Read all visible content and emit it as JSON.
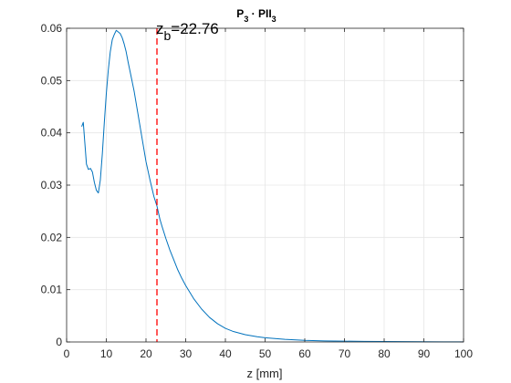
{
  "chart_data": {
    "type": "line",
    "title": {
      "p": "P",
      "p_sub": "3",
      "dot": " · ",
      "pii": "PII",
      "pii_sub": "3"
    },
    "xlabel": "z [mm]",
    "ylabel": "",
    "xlim": [
      0,
      100
    ],
    "ylim": [
      0,
      0.06
    ],
    "xticks": [
      0,
      10,
      20,
      30,
      40,
      50,
      60,
      70,
      80,
      90,
      100
    ],
    "yticks": [
      0,
      0.01,
      0.02,
      0.03,
      0.04,
      0.05,
      0.06
    ],
    "xtick_labels": [
      "0",
      "10",
      "20",
      "30",
      "40",
      "50",
      "60",
      "70",
      "80",
      "90",
      "100"
    ],
    "ytick_labels": [
      "0",
      "0.01",
      "0.02",
      "0.03",
      "0.04",
      "0.05",
      "0.06"
    ],
    "grid": true,
    "colors": {
      "line": "#0072BD",
      "marker": "#FF0000",
      "grid": "#E6E6E6",
      "axes": "#262626"
    },
    "series": [
      {
        "x": [
          3.8,
          4.2,
          4.6,
          5,
          5.5,
          6,
          6.5,
          7,
          7.5,
          8,
          8.5,
          9,
          9.5,
          10,
          10.5,
          11,
          11.5,
          12,
          12.5,
          13,
          13.5,
          14,
          14.5,
          15,
          15.5,
          16,
          17,
          18,
          19,
          20,
          21,
          22,
          22.76,
          23.5,
          24,
          25,
          26,
          27,
          28,
          29,
          30,
          32,
          34,
          36,
          38,
          40,
          42,
          45,
          48,
          50,
          55,
          60,
          65,
          70,
          75,
          80,
          85,
          90,
          95,
          100
        ],
        "y": [
          0.0412,
          0.042,
          0.038,
          0.034,
          0.033,
          0.0332,
          0.0325,
          0.0305,
          0.029,
          0.0285,
          0.031,
          0.036,
          0.042,
          0.0475,
          0.052,
          0.0555,
          0.0578,
          0.0588,
          0.0596,
          0.0593,
          0.059,
          0.0582,
          0.057,
          0.0555,
          0.0535,
          0.0517,
          0.048,
          0.0435,
          0.039,
          0.0345,
          0.031,
          0.0278,
          0.026,
          0.0235,
          0.0222,
          0.0198,
          0.0176,
          0.0157,
          0.0138,
          0.0122,
          0.0108,
          0.0083,
          0.0063,
          0.0047,
          0.0035,
          0.0026,
          0.002,
          0.0014,
          0.001,
          0.0008,
          0.0005,
          0.0003,
          0.0002,
          0.00015,
          0.0001,
          8e-05,
          6e-05,
          4e-05,
          3e-05,
          2e-05
        ]
      }
    ],
    "marker_line": {
      "x": 22.76,
      "style": "dashed"
    },
    "annotation": {
      "base": "z",
      "sub": "b",
      "text": "=22.76"
    }
  }
}
